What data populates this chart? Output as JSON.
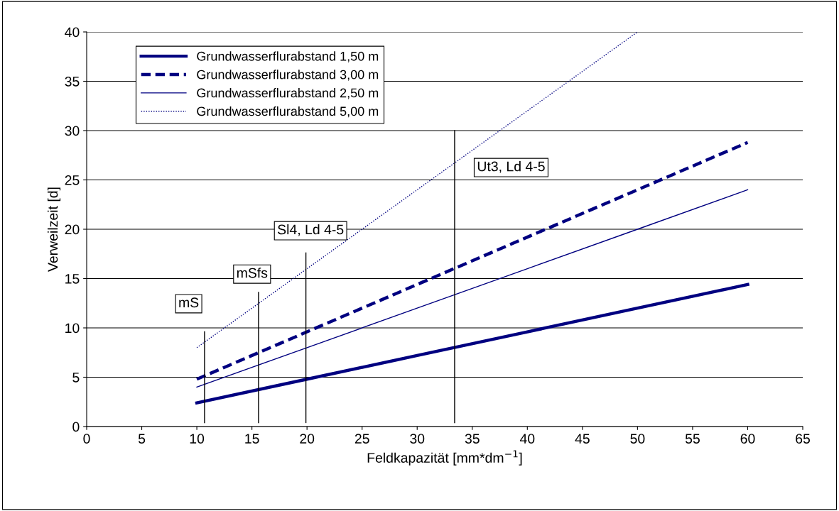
{
  "chart_data": {
    "type": "line",
    "xlabel": "Feldkapazität [mm*dm$^{−1}$]",
    "ylabel": "Verweilzeit [d]",
    "series": [
      {
        "name": "Grundwasserflurabstand 1,50 m",
        "color": "#000080",
        "line_style": "solid",
        "x": [
          10,
          20,
          30,
          40,
          50,
          60
        ],
        "values": [
          2.4,
          4.8,
          7.2,
          9.6,
          12.0,
          14.4
        ]
      },
      {
        "name": "Grundwasserflurabstand 3,00 m",
        "color": "#000080",
        "line_style": "dashed",
        "x": [
          10,
          20,
          30,
          40,
          50,
          60
        ],
        "values": [
          4.8,
          9.6,
          14.4,
          19.2,
          24.0,
          28.8
        ]
      },
      {
        "name": "Grundwasserflurabstand 2,50 m",
        "color": "#000080",
        "line_style": "solid",
        "x": [
          10,
          20,
          30,
          40,
          50,
          60
        ],
        "values": [
          4.0,
          8.0,
          12.0,
          16.0,
          20.0,
          24.0
        ]
      },
      {
        "name": "Grundwasserflurabstand 5,00 m",
        "color": "#000080",
        "line_style": "dotted",
        "x": [
          10,
          20,
          30,
          40,
          50
        ],
        "values": [
          8.0,
          16.0,
          24.0,
          32.0,
          40.0
        ]
      }
    ],
    "ref_lines": [
      {
        "axis": "x",
        "value": 10.7,
        "label": "mS",
        "color": "#000000"
      },
      {
        "axis": "x",
        "value": 15.6,
        "label": "mSfs",
        "color": "#000000"
      },
      {
        "axis": "x",
        "value": 19.9,
        "label": "Sl4, Ld 4-5",
        "color": "#000000"
      },
      {
        "axis": "x",
        "value": 33.4,
        "label": "Ut3, Ld 4-5",
        "color": "#000000"
      }
    ],
    "xlim": [
      0,
      65
    ],
    "xticks": [
      0,
      5,
      10,
      15,
      20,
      25,
      30,
      35,
      40,
      45,
      50,
      55,
      60,
      65
    ],
    "ylim": [
      0,
      40
    ],
    "yticks": [
      0,
      5,
      10,
      15,
      20,
      25,
      30,
      35,
      40
    ],
    "grid": "y",
    "legend": "top left",
    "marker": "none"
  }
}
